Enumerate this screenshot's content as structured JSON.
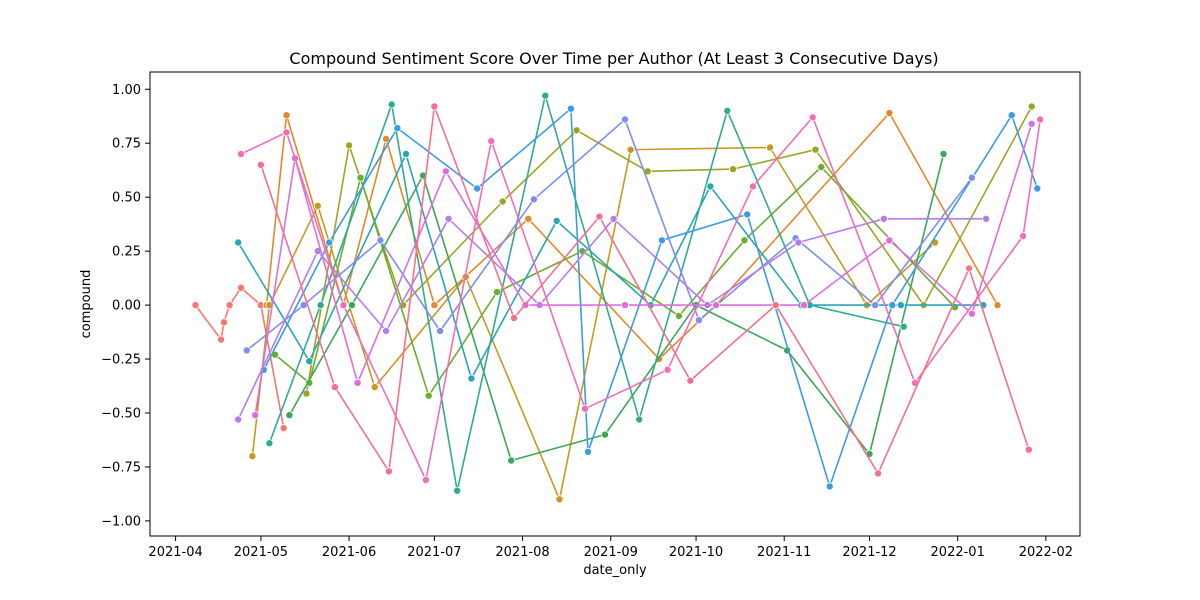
{
  "chart_data": {
    "type": "line",
    "title": "Compound Sentiment Score Over Time per Author (At Least 3 Consecutive Days)",
    "xlabel": "date_only",
    "ylabel": "compound",
    "x_ticks": [
      "2021-04",
      "2021-05",
      "2021-06",
      "2021-07",
      "2021-08",
      "2021-09",
      "2021-10",
      "2021-11",
      "2021-12",
      "2022-01",
      "2022-02"
    ],
    "y_ticks": [
      "1.00",
      "0.75",
      "0.50",
      "0.25",
      "0.00",
      "−0.25",
      "−0.50",
      "−0.75",
      "−1.00"
    ],
    "xlim": [
      "2021-03-23",
      "2022-02-13"
    ],
    "ylim": [
      -1.07,
      1.08
    ],
    "grid": false,
    "legend": "none",
    "palette": [
      "#f8766d",
      "#e6872a",
      "#c79a1e",
      "#a0a425",
      "#6bad2c",
      "#3aa857",
      "#2fac8e",
      "#28a6b8",
      "#3d9be3",
      "#7e8ef0",
      "#b67cef",
      "#de6ee0",
      "#f56cb8",
      "#f7708a"
    ],
    "series": [
      {
        "x": [
          "2021-04-08",
          "2021-04-17",
          "2021-04-18",
          "2021-04-20",
          "2021-04-24",
          "2021-05-01",
          "2021-05-09"
        ],
        "y": [
          0.0,
          -0.16,
          -0.08,
          0.0,
          0.08,
          0.0,
          -0.57
        ]
      },
      {
        "x": [
          "2021-05-03",
          "2021-05-10",
          "2021-05-30",
          "2021-06-14",
          "2021-07-01",
          "2021-08-03",
          "2021-09-18",
          "2021-10-08",
          "2021-12-08",
          "2022-01-15"
        ],
        "y": [
          0.0,
          0.88,
          0.0,
          0.77,
          0.0,
          0.4,
          -0.25,
          0.0,
          0.89,
          0.0
        ]
      },
      {
        "x": [
          "2021-04-28",
          "2021-05-04",
          "2021-05-21",
          "2021-06-10",
          "2021-07-12",
          "2021-08-14",
          "2021-09-08",
          "2021-10-27",
          "2021-11-30",
          "2021-12-24"
        ],
        "y": [
          -0.7,
          0.0,
          0.46,
          -0.38,
          0.13,
          -0.9,
          0.72,
          0.73,
          0.0,
          0.29
        ]
      },
      {
        "x": [
          "2021-05-17",
          "2021-06-01",
          "2021-06-20",
          "2021-07-25",
          "2021-08-20",
          "2021-09-14",
          "2021-10-14",
          "2021-11-12",
          "2021-12-20",
          "2022-01-27"
        ],
        "y": [
          -0.41,
          0.74,
          0.0,
          0.48,
          0.81,
          0.62,
          0.63,
          0.72,
          0.0,
          0.92
        ]
      },
      {
        "x": [
          "2021-05-06",
          "2021-05-18",
          "2021-06-05",
          "2021-06-29",
          "2021-07-23",
          "2021-08-22",
          "2021-09-25",
          "2021-10-18",
          "2021-11-14",
          "2021-12-31"
        ],
        "y": [
          -0.23,
          -0.36,
          0.59,
          -0.42,
          0.06,
          0.25,
          -0.05,
          0.3,
          0.64,
          -0.01
        ]
      },
      {
        "x": [
          "2021-05-11",
          "2021-06-02",
          "2021-06-27",
          "2021-07-28",
          "2021-08-30",
          "2021-10-01",
          "2021-11-02",
          "2021-12-01",
          "2021-12-27"
        ],
        "y": [
          -0.51,
          0.0,
          0.6,
          -0.72,
          -0.6,
          0.0,
          -0.21,
          -0.69,
          0.7
        ]
      },
      {
        "x": [
          "2021-05-04",
          "2021-05-22",
          "2021-06-16",
          "2021-07-09",
          "2021-08-09",
          "2021-09-11",
          "2021-10-12",
          "2021-11-10",
          "2021-12-13"
        ],
        "y": [
          -0.64,
          0.0,
          0.93,
          -0.86,
          0.97,
          -0.53,
          0.9,
          0.0,
          -0.1
        ]
      },
      {
        "x": [
          "2021-04-23",
          "2021-05-18",
          "2021-06-21",
          "2021-07-14",
          "2021-08-13",
          "2021-09-15",
          "2021-10-06",
          "2021-11-07",
          "2021-12-12",
          "2022-01-10"
        ],
        "y": [
          0.29,
          -0.26,
          0.7,
          -0.34,
          0.39,
          0.0,
          0.55,
          0.0,
          0.0,
          0.0
        ]
      },
      {
        "x": [
          "2021-05-02",
          "2021-05-25",
          "2021-06-18",
          "2021-07-16",
          "2021-08-18",
          "2021-08-24",
          "2021-09-19",
          "2021-10-19",
          "2021-11-17",
          "2021-12-09",
          "2022-01-20",
          "2022-01-29"
        ],
        "y": [
          -0.3,
          0.29,
          0.82,
          0.54,
          0.91,
          -0.68,
          0.3,
          0.42,
          -0.84,
          0.0,
          0.88,
          0.54
        ]
      },
      {
        "x": [
          "2021-04-26",
          "2021-05-16",
          "2021-06-12",
          "2021-07-03",
          "2021-08-05",
          "2021-09-06",
          "2021-10-02",
          "2021-11-05",
          "2021-12-03",
          "2022-01-06"
        ],
        "y": [
          -0.21,
          0.0,
          0.3,
          -0.12,
          0.49,
          0.86,
          -0.07,
          0.31,
          0.0,
          0.59
        ]
      },
      {
        "x": [
          "2021-04-23",
          "2021-05-21",
          "2021-06-14",
          "2021-07-06",
          "2021-08-07",
          "2021-09-02",
          "2021-10-05",
          "2021-11-06",
          "2021-12-06",
          "2022-01-11"
        ],
        "y": [
          -0.53,
          0.25,
          -0.12,
          0.4,
          0.0,
          0.4,
          0.0,
          0.29,
          0.4,
          0.4
        ]
      },
      {
        "x": [
          "2021-04-29",
          "2021-05-13",
          "2021-06-04",
          "2021-07-05",
          "2021-08-02",
          "2021-09-06",
          "2021-10-08",
          "2021-11-08",
          "2021-12-08",
          "2022-01-06",
          "2022-01-27"
        ],
        "y": [
          -0.51,
          0.68,
          -0.36,
          0.62,
          0.0,
          0.0,
          0.0,
          0.0,
          0.3,
          -0.04,
          0.84
        ]
      },
      {
        "x": [
          "2021-04-24",
          "2021-05-10",
          "2021-05-30",
          "2021-06-28",
          "2021-07-21",
          "2021-08-23",
          "2021-09-21",
          "2021-10-21",
          "2021-11-11",
          "2021-12-17",
          "2022-01-24",
          "2022-01-30"
        ],
        "y": [
          0.7,
          0.8,
          0.0,
          -0.81,
          0.76,
          -0.48,
          -0.3,
          0.55,
          0.87,
          -0.36,
          0.32,
          0.86
        ]
      },
      {
        "x": [
          "2021-05-01",
          "2021-05-27",
          "2021-06-15",
          "2021-07-01",
          "2021-07-29",
          "2021-08-28",
          "2021-09-29",
          "2021-10-29",
          "2021-12-04",
          "2022-01-05",
          "2022-01-26"
        ],
        "y": [
          0.65,
          -0.38,
          -0.77,
          0.92,
          -0.06,
          0.41,
          -0.35,
          0.0,
          -0.78,
          0.17,
          -0.67
        ]
      }
    ]
  }
}
